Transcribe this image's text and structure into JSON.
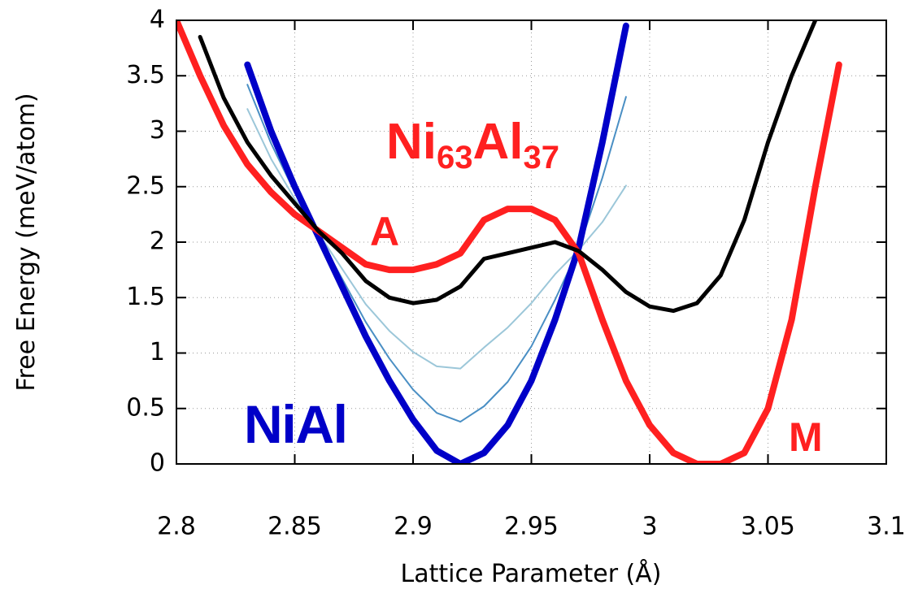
{
  "chart_data": {
    "type": "line",
    "xlabel": "Lattice Parameter (Å)",
    "ylabel": "Free Energy (meV/atom)",
    "annotations": [
      {
        "text": "NiAl",
        "color": "#0000c8"
      },
      {
        "text": "A",
        "color": "#ff2020"
      },
      {
        "text": "M",
        "color": "#ff2020"
      }
    ],
    "composition_label": {
      "parts": [
        "Ni",
        "63",
        "Al",
        "37"
      ],
      "color": "#ff2020"
    },
    "x": [
      2.8,
      2.81,
      2.82,
      2.83,
      2.84,
      2.85,
      2.86,
      2.87,
      2.88,
      2.89,
      2.9,
      2.91,
      2.92,
      2.93,
      2.94,
      2.95,
      2.96,
      2.97,
      2.98,
      2.99,
      3.0,
      3.01,
      3.02,
      3.03,
      3.04,
      3.05,
      3.06,
      3.07,
      3.08,
      3.09,
      3.1
    ],
    "series": [
      {
        "color": "#4a8fc4",
        "values": [
          null,
          null,
          null,
          3.42,
          2.89,
          2.45,
          2.06,
          1.67,
          1.28,
          0.95,
          0.67,
          0.46,
          0.38,
          0.52,
          0.74,
          1.06,
          1.48,
          1.94,
          2.58,
          3.31,
          null,
          null,
          null,
          null,
          null,
          null,
          null,
          null,
          null,
          null,
          null
        ]
      },
      {
        "color": "#9cc7d9",
        "values": [
          null,
          null,
          null,
          3.2,
          2.75,
          2.39,
          2.08,
          1.76,
          1.44,
          1.2,
          1.01,
          0.88,
          0.86,
          1.05,
          1.23,
          1.45,
          1.71,
          1.93,
          2.18,
          2.51,
          null,
          null,
          null,
          null,
          null,
          null,
          null,
          null,
          null,
          null,
          null
        ]
      },
      {
        "color": "#0000c8",
        "values": [
          null,
          null,
          null,
          3.6,
          3.0,
          2.5,
          2.05,
          1.6,
          1.15,
          0.75,
          0.4,
          0.12,
          0.0,
          0.1,
          0.35,
          0.75,
          1.3,
          1.95,
          2.9,
          3.95,
          null,
          null,
          null,
          null,
          null,
          null,
          null,
          null,
          null,
          null,
          null
        ]
      },
      {
        "color": "#ff2020",
        "values": [
          4.0,
          3.5,
          3.05,
          2.7,
          2.45,
          2.25,
          2.1,
          1.95,
          1.8,
          1.75,
          1.75,
          1.8,
          1.9,
          2.2,
          2.3,
          2.3,
          2.2,
          1.9,
          1.3,
          0.75,
          0.35,
          0.1,
          0.0,
          0.0,
          0.1,
          0.5,
          1.3,
          2.5,
          3.6,
          null,
          null
        ]
      },
      {
        "color": "#000000",
        "values": [
          null,
          3.85,
          3.3,
          2.9,
          2.6,
          2.35,
          2.1,
          1.9,
          1.65,
          1.5,
          1.45,
          1.48,
          1.6,
          1.85,
          1.9,
          1.95,
          2.0,
          1.92,
          1.75,
          1.55,
          1.42,
          1.38,
          1.45,
          1.7,
          2.2,
          2.9,
          3.5,
          4.0,
          null,
          null,
          null
        ]
      }
    ],
    "xlim": [
      2.8,
      3.1
    ],
    "ylim": [
      0,
      4
    ],
    "xticks": [
      2.8,
      2.85,
      2.9,
      2.95,
      3,
      3.05,
      3.1
    ],
    "yticks": [
      0,
      0.5,
      1,
      1.5,
      2,
      2.5,
      3,
      3.5,
      4
    ],
    "grid": true
  }
}
